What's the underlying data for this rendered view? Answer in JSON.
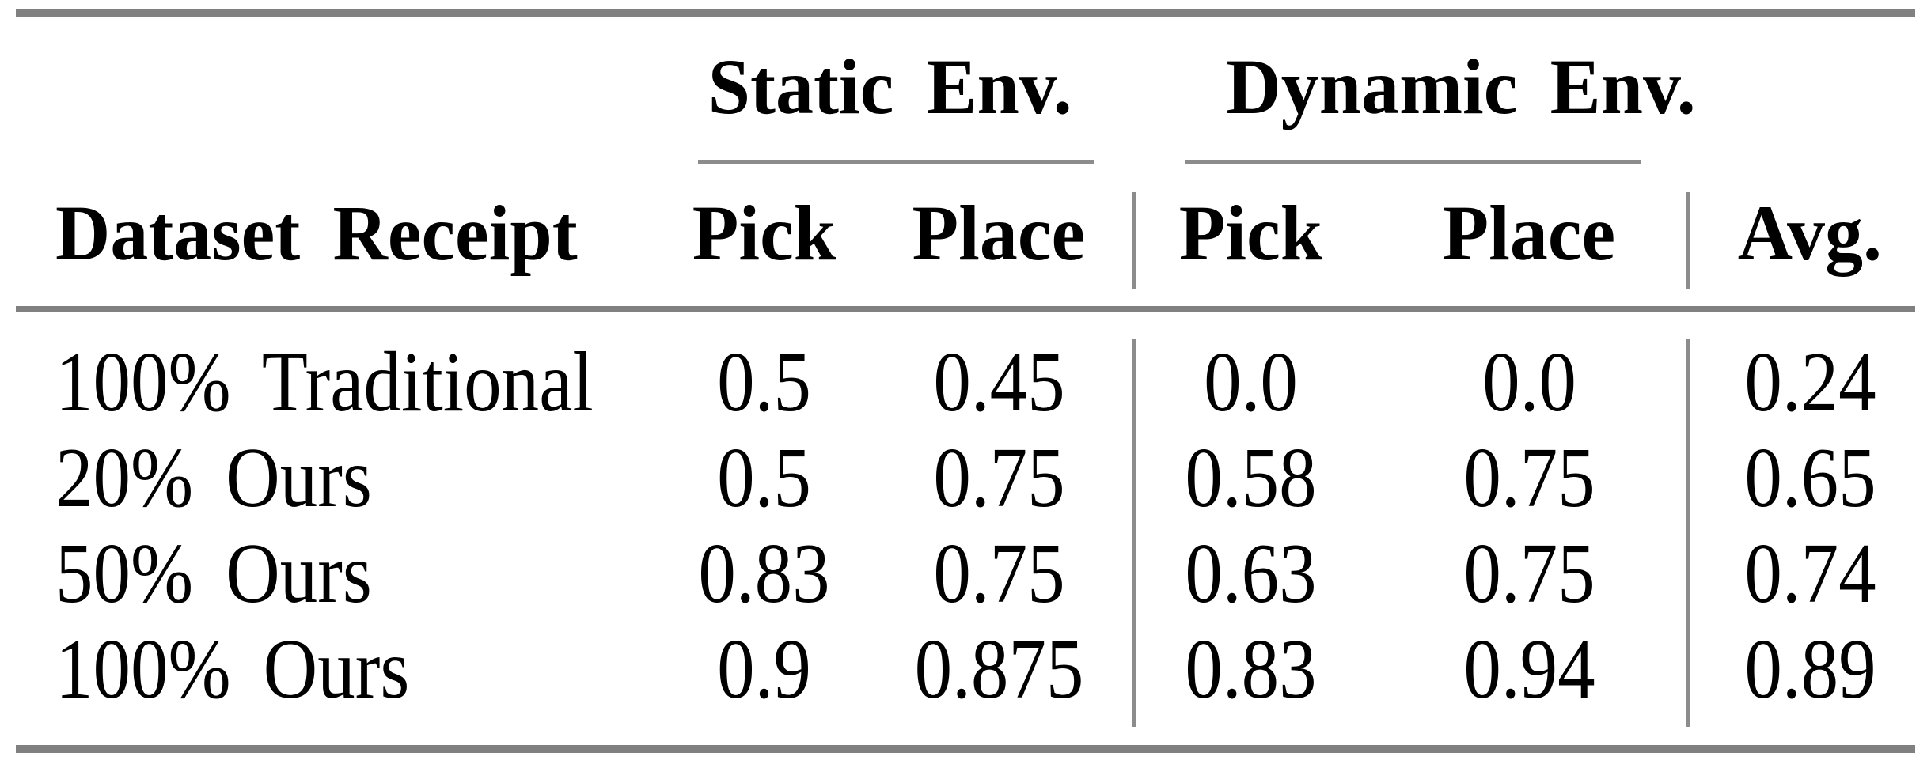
{
  "colors": {
    "background": "#ffffff",
    "text": "#000000",
    "thick_rule": "#808080",
    "thin_rule": "#8c8c8c"
  },
  "table": {
    "column_groups": [
      {
        "label": "Static Env.",
        "columns": [
          "Pick",
          "Place"
        ]
      },
      {
        "label": "Dynamic Env.",
        "columns": [
          "Pick",
          "Place"
        ]
      }
    ],
    "headers": {
      "row_label": "Dataset Receipt",
      "static_pick": "Pick",
      "static_place": "Place",
      "dynamic_pick": "Pick",
      "dynamic_place": "Place",
      "avg": "Avg."
    },
    "rows": [
      {
        "label": "100% Traditional",
        "static_pick": "0.5",
        "static_place": "0.45",
        "dynamic_pick": "0.0",
        "dynamic_place": "0.0",
        "avg": "0.24"
      },
      {
        "label": "20% Ours",
        "static_pick": "0.5",
        "static_place": "0.75",
        "dynamic_pick": "0.58",
        "dynamic_place": "0.75",
        "avg": "0.65"
      },
      {
        "label": "50% Ours",
        "static_pick": "0.83",
        "static_place": "0.75",
        "dynamic_pick": "0.63",
        "dynamic_place": "0.75",
        "avg": "0.74"
      },
      {
        "label": "100% Ours",
        "static_pick": "0.9",
        "static_place": "0.875",
        "dynamic_pick": "0.83",
        "dynamic_place": "0.94",
        "avg": "0.89"
      }
    ]
  },
  "chart_data": {
    "type": "table",
    "columns": [
      "Dataset Receipt",
      "Static Env. Pick",
      "Static Env. Place",
      "Dynamic Env. Pick",
      "Dynamic Env. Place",
      "Avg."
    ],
    "rows": [
      [
        "100% Traditional",
        0.5,
        0.45,
        0.0,
        0.0,
        0.24
      ],
      [
        "20% Ours",
        0.5,
        0.75,
        0.58,
        0.75,
        0.65
      ],
      [
        "50% Ours",
        0.83,
        0.75,
        0.63,
        0.75,
        0.74
      ],
      [
        "100% Ours",
        0.9,
        0.875,
        0.83,
        0.94,
        0.89
      ]
    ]
  }
}
